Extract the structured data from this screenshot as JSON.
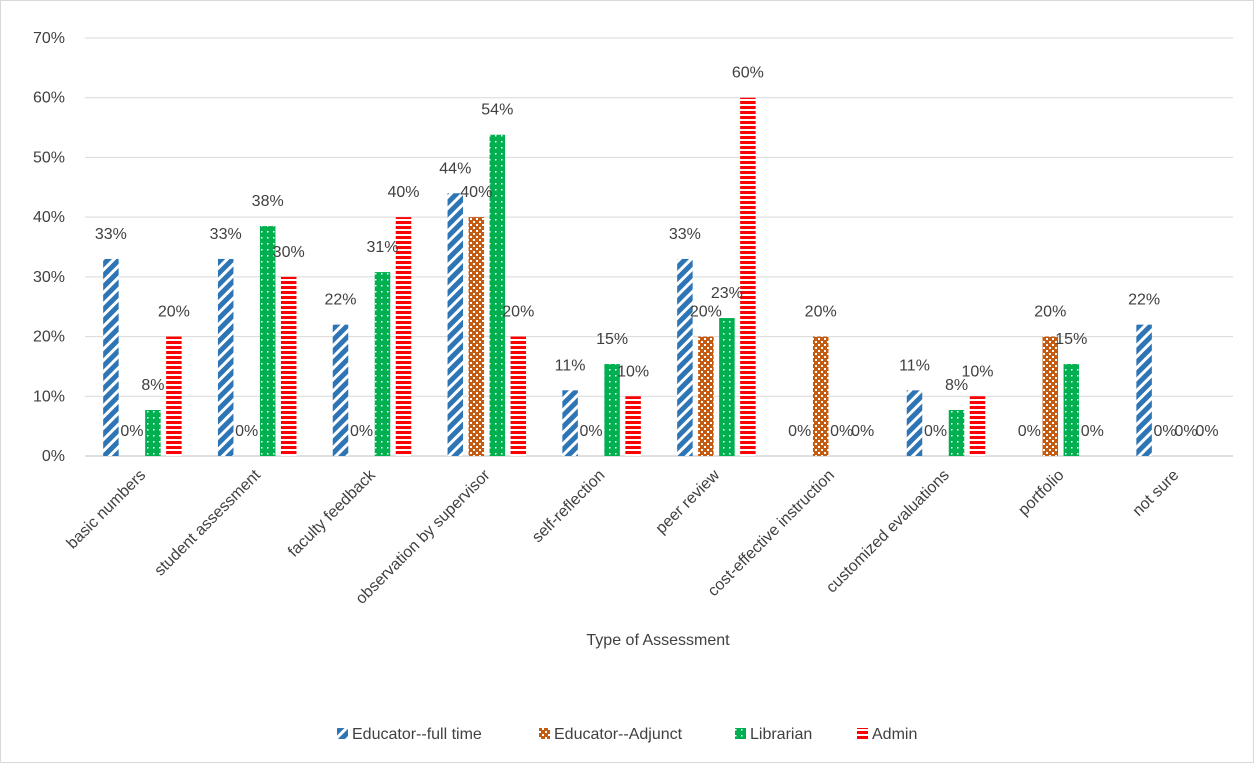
{
  "chart_data": {
    "type": "bar",
    "title": "",
    "xlabel": "Type of Assessment",
    "ylabel": "",
    "ylim": [
      0,
      0.7
    ],
    "ytick_step": 0.1,
    "y_format": "percent",
    "grid": true,
    "legend_position": "bottom",
    "categories": [
      "basic numbers",
      "student assessment",
      "faculty feedback",
      "observation by supervisor",
      "self-reflection",
      "peer review",
      "cost-effective instruction",
      "customized evaluations",
      "portfolio",
      "not sure"
    ],
    "series": [
      {
        "name": "Educator--full time",
        "color": "#2e75b6",
        "pattern": "diagonal-stripes",
        "values": [
          0.33,
          0.33,
          0.22,
          0.44,
          0.11,
          0.33,
          0.0,
          0.11,
          0.0,
          0.22
        ],
        "labels": [
          "33%",
          "33%",
          "22%",
          "44%",
          "11%",
          "33%",
          "0%",
          "11%",
          "0%",
          "22%"
        ]
      },
      {
        "name": "Educator--Adjunct",
        "color": "#c55a11",
        "pattern": "checker",
        "values": [
          0.0,
          0.0,
          0.0,
          0.4,
          0.0,
          0.2,
          0.2,
          0.0,
          0.2,
          0.0
        ],
        "labels": [
          "0%",
          "0%",
          "0%",
          "40%",
          "0%",
          "20%",
          "20%",
          "0%",
          "20%",
          "0%"
        ]
      },
      {
        "name": "Librarian",
        "color": "#00b050",
        "pattern": "dots",
        "values": [
          0.077,
          0.385,
          0.308,
          0.538,
          0.154,
          0.231,
          0.0,
          0.077,
          0.154,
          0.0
        ],
        "labels": [
          "8%",
          "38%",
          "31%",
          "54%",
          "15%",
          "23%",
          "0%",
          "8%",
          "15%",
          "0%"
        ]
      },
      {
        "name": "Admin",
        "color": "#ff0000",
        "pattern": "horizontal-stripes",
        "values": [
          0.2,
          0.3,
          0.4,
          0.2,
          0.1,
          0.6,
          0.0,
          0.1,
          0.0,
          0.0
        ],
        "labels": [
          "20%",
          "30%",
          "40%",
          "20%",
          "10%",
          "60%",
          "0%",
          "10%",
          "0%",
          "0%"
        ]
      }
    ]
  }
}
